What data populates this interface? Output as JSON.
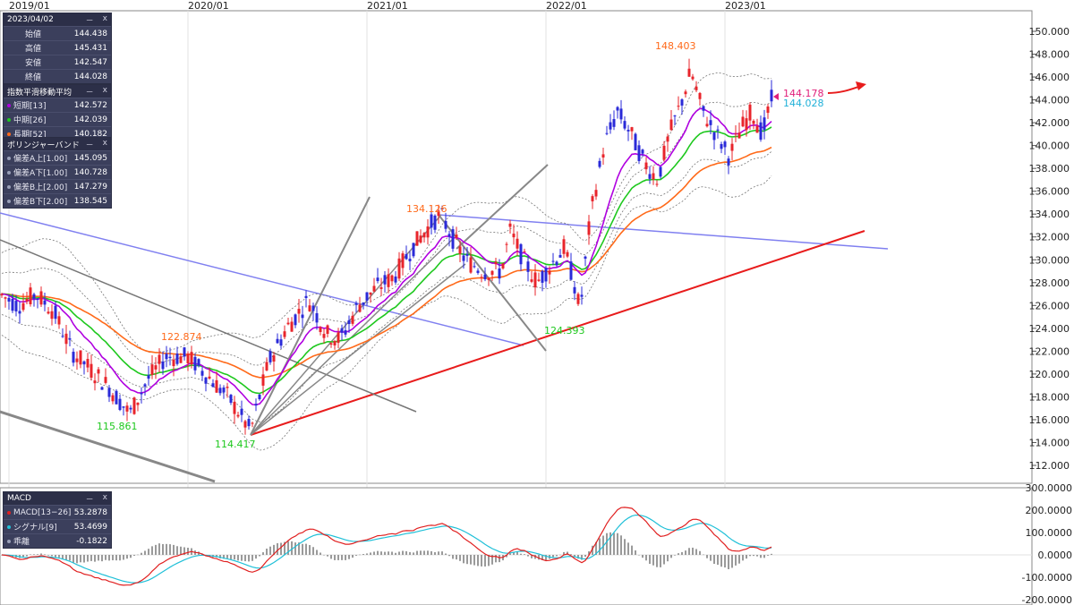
{
  "x_axis": {
    "labels": [
      "2019/01",
      "2020/01",
      "2021/01",
      "2022/01",
      "2023/01"
    ]
  },
  "price_axis": {
    "labels": [
      "150.000",
      "148.000",
      "146.000",
      "144.000",
      "142.000",
      "140.000",
      "138.000",
      "136.000",
      "134.000",
      "132.000",
      "130.000",
      "128.000",
      "126.000",
      "124.000",
      "122.000",
      "120.000",
      "118.000",
      "116.000",
      "114.000",
      "112.000"
    ]
  },
  "macd_axis": {
    "labels": [
      "300.0000",
      "200.0000",
      "100.0000",
      "0.0000",
      "-100.0000",
      "-200.0000"
    ]
  },
  "annotations": {
    "high_2019": "122.874",
    "low_2019": "115.861",
    "low_2020": "114.417",
    "high_2021": "134.126",
    "low_2022": "124.393",
    "high_2022": "148.403",
    "last_pink": "144.178",
    "last_cyan": "144.028"
  },
  "ohlc_panel": {
    "title": "2023/04/02",
    "ctrl_min": "－",
    "ctrl_close": "x",
    "rows": [
      {
        "label": "始値",
        "value": "144.438"
      },
      {
        "label": "高値",
        "value": "145.431"
      },
      {
        "label": "安値",
        "value": "142.547"
      },
      {
        "label": "終値",
        "value": "144.028"
      }
    ]
  },
  "ema_panel": {
    "title": "指数平滑移動平均",
    "ctrl_min": "－",
    "ctrl_close": "x",
    "rows": [
      {
        "label": "短期[13]",
        "value": "142.572",
        "color": "#b000e0"
      },
      {
        "label": "中期[26]",
        "value": "142.039",
        "color": "#1ec81e"
      },
      {
        "label": "長期[52]",
        "value": "140.182",
        "color": "#ff6a1a"
      }
    ]
  },
  "bb_panel": {
    "title": "ボリンジャーバンド",
    "ctrl_min": "－",
    "ctrl_close": "x",
    "rows": [
      {
        "label": "偏差A上[1.00]",
        "value": "145.095",
        "color": "#9aa0b8"
      },
      {
        "label": "偏差A下[1.00]",
        "value": "140.728",
        "color": "#9aa0b8"
      },
      {
        "label": "偏差B上[2.00]",
        "value": "147.279",
        "color": "#9aa0b8"
      },
      {
        "label": "偏差B下[2.00]",
        "value": "138.545",
        "color": "#9aa0b8"
      }
    ]
  },
  "macd_panel": {
    "title": "MACD",
    "ctrl_min": "－",
    "ctrl_close": "x",
    "rows": [
      {
        "label": "MACD[13−26]",
        "value": "53.2878",
        "color": "#e02020"
      },
      {
        "label": "シグナル[9]",
        "value": "53.4699",
        "color": "#20c0d8"
      },
      {
        "label": "乖離",
        "value": "-0.1822",
        "color": "#9aa0b8"
      }
    ]
  },
  "colors": {
    "up": "#e8242b",
    "down": "#2a2ad8",
    "ema_short": "#b000e0",
    "ema_mid": "#1ec81e",
    "ema_long": "#ff6a1a",
    "support": "#e81c1c",
    "trend_blue": "#8080f0",
    "macd": "#e02020",
    "signal": "#20c0d8"
  }
}
